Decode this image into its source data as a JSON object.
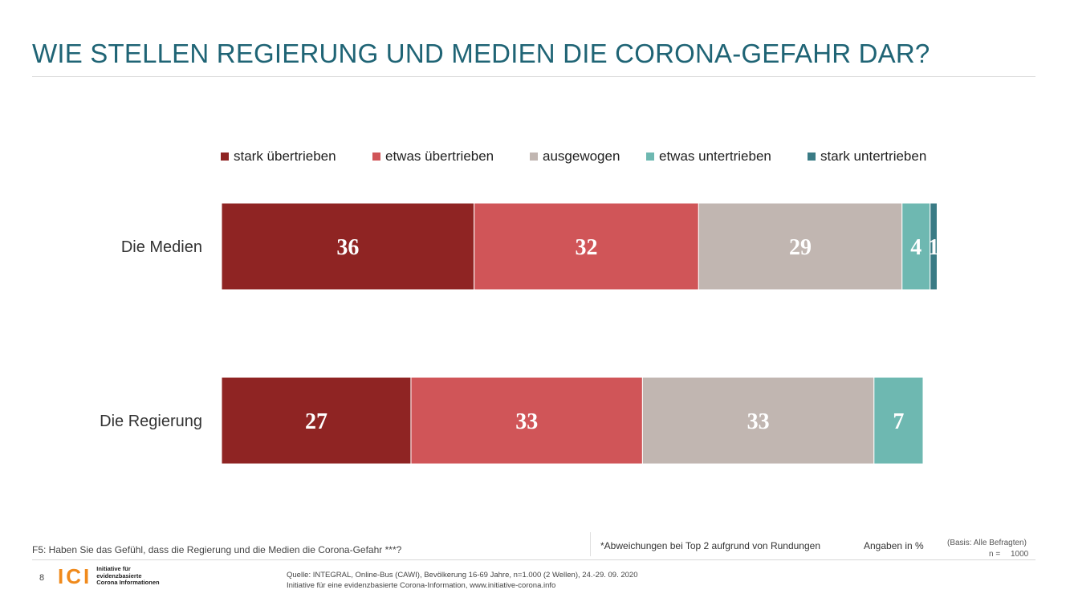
{
  "title": "WIE STELLEN REGIERUNG UND MEDIEN DIE CORONA-GEFAHR DAR?",
  "chart_data": {
    "type": "bar",
    "orientation": "horizontal",
    "stacked": true,
    "categories": [
      "Die Medien",
      "Die Regierung"
    ],
    "series": [
      {
        "name": "stark übertrieben",
        "values": [
          36,
          27
        ],
        "color": "#8f2423"
      },
      {
        "name": "etwas übertrieben",
        "values": [
          32,
          33
        ],
        "color": "#d05558"
      },
      {
        "name": "ausgewogen",
        "values": [
          29,
          33
        ],
        "color": "#c1b6b1"
      },
      {
        "name": "etwas untertrieben",
        "values": [
          4,
          7
        ],
        "color": "#6eb8b1"
      },
      {
        "name": "stark untertrieben",
        "values": [
          1,
          0
        ],
        "color": "#3a7b85"
      }
    ],
    "xlim": [
      0,
      100
    ],
    "legend_position": "top",
    "grid": false,
    "value_labels": [
      [
        "36",
        "32",
        "29",
        "4",
        "1"
      ],
      [
        "27",
        "33",
        "33",
        "7",
        ""
      ]
    ]
  },
  "footer": {
    "question": "F5: Haben Sie das Gefühl, dass die Regierung und die Medien die Corona-Gefahr ***?",
    "note": "*Abweichungen bei Top 2 aufgrund von Rundungen",
    "unit": "Angaben in %",
    "basis": "(Basis: Alle Befragten)",
    "n_label": "n =",
    "n_value": "1000",
    "page_number": "8",
    "logo_mark": "ICI",
    "logo_lines": [
      "Initiative für",
      "evidenzbasierte",
      "Corona Informationen"
    ],
    "source_lines": [
      "Quelle: INTEGRAL, Online-Bus (CAWI), Bevölkerung 16-69 Jahre, n=1.000 (2 Wellen), 24.-29. 09. 2020",
      "Initiative für eine evidenzbasierte Corona-Information, www.initiative-corona.info"
    ]
  }
}
